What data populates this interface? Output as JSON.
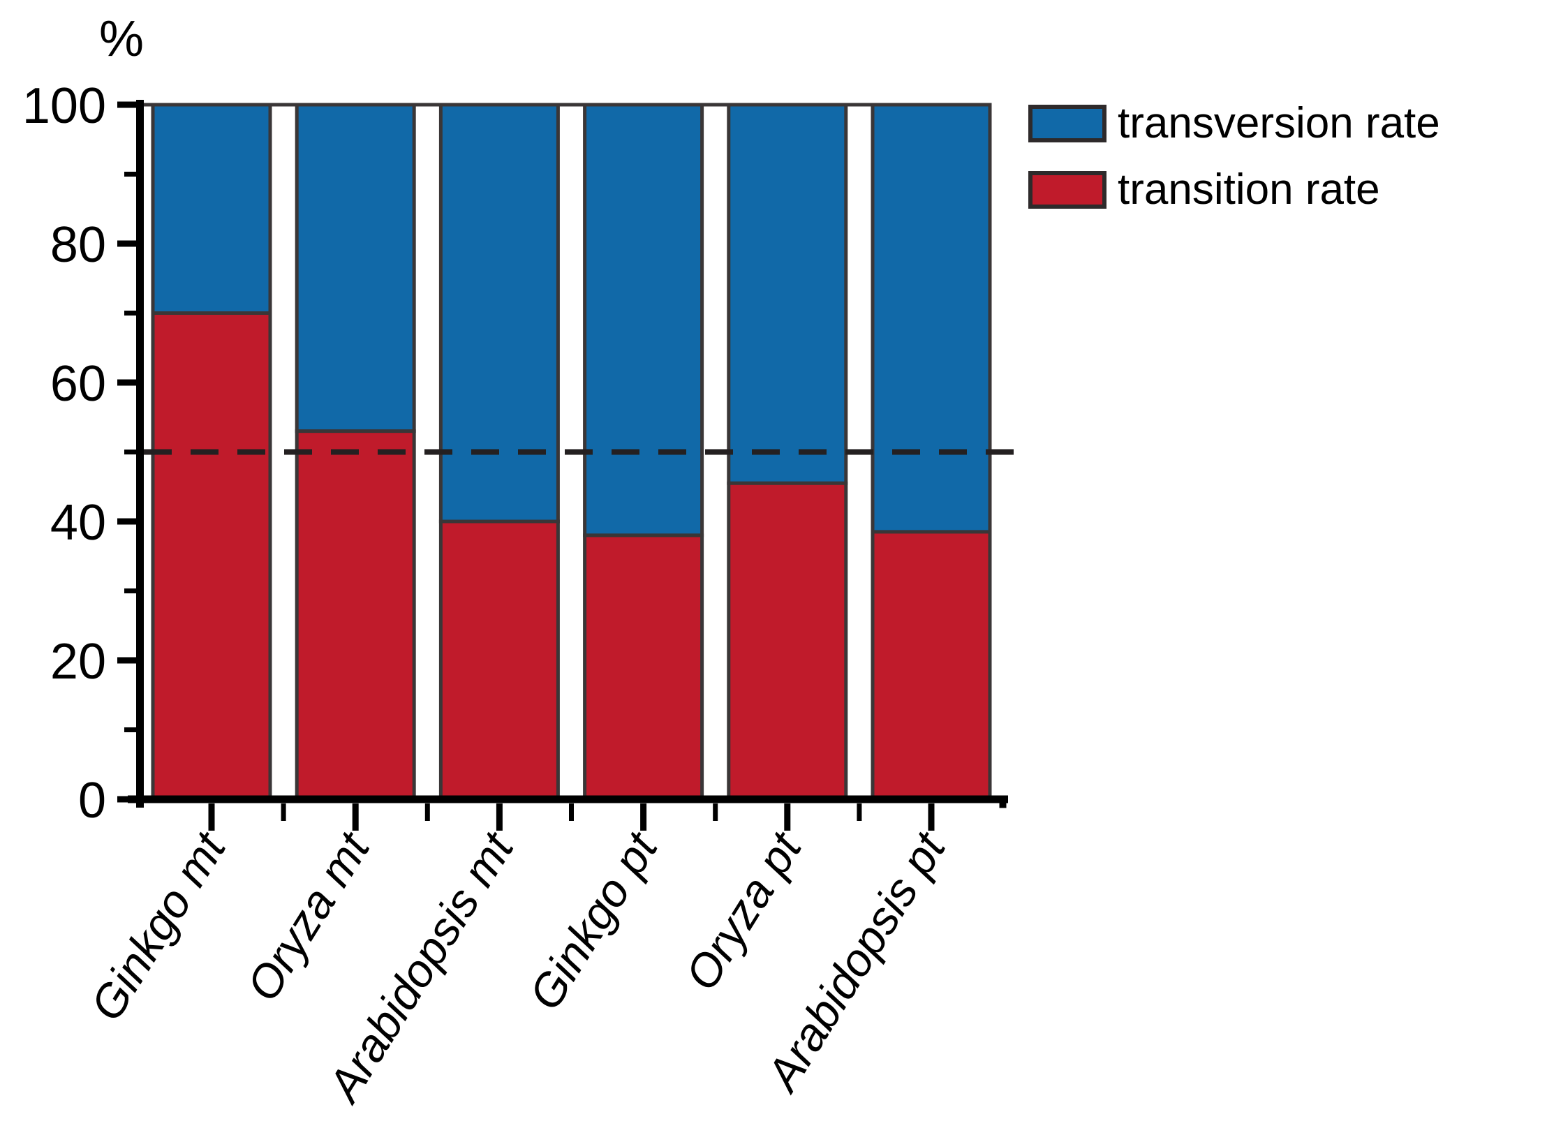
{
  "figure": {
    "legend": [
      {
        "label": "transversion rate",
        "color": "#1169A8"
      },
      {
        "label": "transition rate",
        "color": "#C01B2B"
      }
    ]
  },
  "colors": {
    "bar_fill_transversion": "#1169A8",
    "bar_fill_transition": "#C01B2B",
    "bar_border": "#3A3637",
    "axis": "#000000",
    "dashed_line": "#242021",
    "legend_swatch_border": "#2E2A2B",
    "background": "#FFFFFF"
  },
  "chart_data": {
    "type": "bar",
    "stacked": true,
    "title": "",
    "xlabel": "",
    "ylabel": "%",
    "ylim": [
      0,
      100
    ],
    "grid": false,
    "legend_position": "upper right",
    "categories": [
      "Ginkgo mt",
      "Oryza mt",
      "Arabidopsis mt",
      "Ginkgo pt",
      "Oryza pt",
      "Arabidopsis pt"
    ],
    "series": [
      {
        "name": "transition rate",
        "color": "#C01B2B",
        "values": [
          70,
          53,
          40,
          38,
          45.5,
          38.5
        ]
      },
      {
        "name": "transversion rate",
        "color": "#1169A8",
        "values": [
          30,
          47,
          60,
          62,
          54.5,
          61.5
        ]
      }
    ],
    "y_major_ticks": [
      0,
      20,
      40,
      60,
      80,
      100
    ],
    "y_tick_labels": [
      "0",
      "20",
      "40",
      "60",
      "80",
      "100"
    ],
    "y_minor_ticks": [
      10,
      30,
      50,
      70,
      90
    ],
    "reference_line": {
      "y": 50,
      "style": "dashed",
      "color": "#242021"
    }
  }
}
